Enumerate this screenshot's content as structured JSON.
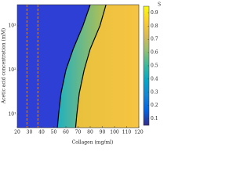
{
  "chart_data": {
    "type": "contour",
    "xlabel": "Collagen (mg/ml)",
    "ylabel": "Acetic acid concentration (mM)",
    "colorbar_label": "S",
    "xlim": [
      20,
      120
    ],
    "xticks": [
      20,
      30,
      40,
      50,
      60,
      70,
      80,
      90,
      100,
      110,
      120
    ],
    "ylim": [
      5,
      3000
    ],
    "log_y": true,
    "yticks": [
      {
        "value": 10,
        "label": "10¹"
      },
      {
        "value": 100,
        "label": "10²"
      },
      {
        "value": 1000,
        "label": "10³"
      }
    ],
    "clim": [
      0.05,
      0.95
    ],
    "cticks": [
      0.1,
      0.2,
      0.3,
      0.4,
      0.5,
      0.6,
      0.7,
      0.8,
      0.9
    ],
    "colormap": [
      "#352a87",
      "#0363e1",
      "#1485d4",
      "#06a7c6",
      "#38b99e",
      "#92bf73",
      "#d9ba56",
      "#fcce2e",
      "#f9fb0e"
    ],
    "region_colors": [
      [
        "#2e3fd6",
        "#2e3fd6"
      ],
      [
        "#1fb0c0",
        "#b8c14e"
      ],
      [
        "#e8c13c",
        "#f6c442"
      ]
    ],
    "contours": [
      {
        "color": "#000000",
        "x": [
          53,
          54,
          56,
          60,
          66,
          74,
          80
        ],
        "y": [
          5,
          10,
          30,
          100,
          300,
          1000,
          3000
        ]
      },
      {
        "color": "#000000",
        "x": [
          68,
          69,
          71,
          75,
          80,
          88,
          93
        ],
        "y": [
          5,
          10,
          30,
          100,
          300,
          1000,
          3000
        ]
      }
    ],
    "vlines": [
      {
        "x": 28,
        "color": "#f08030"
      },
      {
        "x": 37,
        "color": "#f08030"
      }
    ]
  }
}
